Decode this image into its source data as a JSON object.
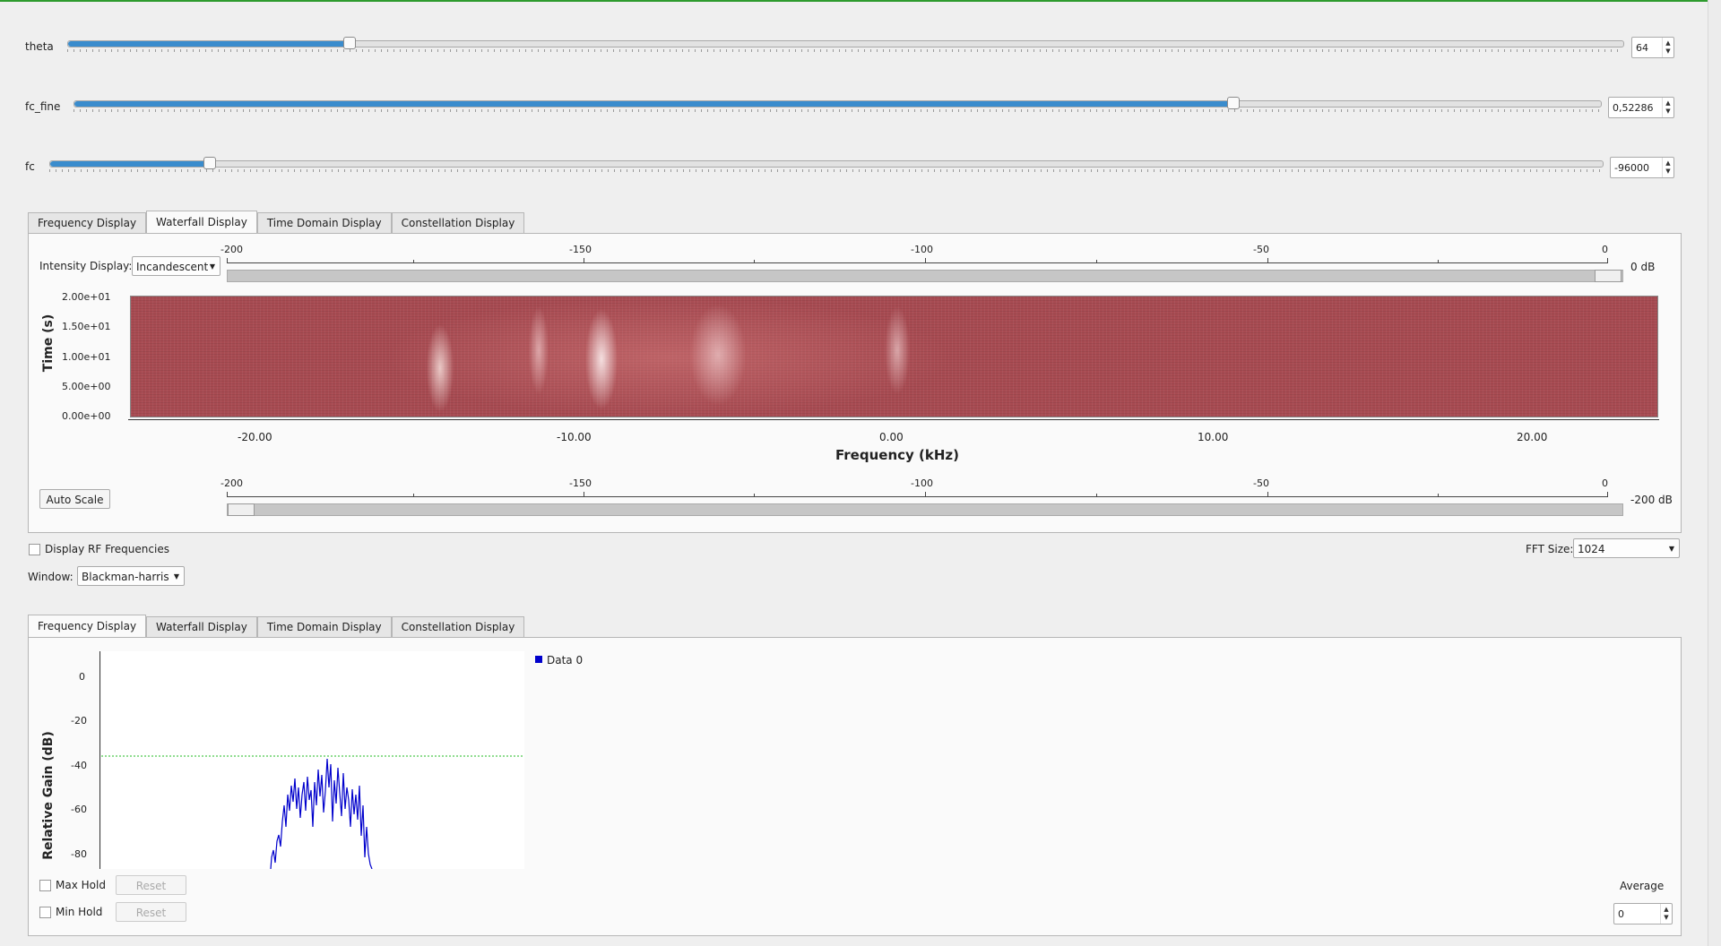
{
  "controls": {
    "theta": {
      "label": "theta",
      "value": "64",
      "fraction": 0.2
    },
    "fc_fine": {
      "label": "fc_fine",
      "value": "0,52286",
      "fraction": 0.76
    },
    "fc": {
      "label": "fc",
      "value": "-96000",
      "fraction": 0.1
    }
  },
  "tabs": [
    "Frequency Display",
    "Waterfall Display",
    "Time Domain Display",
    "Constellation Display"
  ],
  "waterfall": {
    "intensity_label": "Intensity Display:",
    "intensity_value": "Incandescent",
    "top_scale_ticks": [
      "-200",
      "-150",
      "-100",
      "-50",
      "0"
    ],
    "top_scale_unit": "0 dB",
    "bottom_scale_ticks": [
      "-200",
      "-150",
      "-100",
      "-50",
      "0"
    ],
    "bottom_scale_unit": "-200 dB",
    "auto_scale": "Auto Scale",
    "y_ticks": [
      "2.00e+01",
      "1.50e+01",
      "1.00e+01",
      "5.00e+00",
      "0.00e+00"
    ],
    "y_label": "Time (s)",
    "x_ticks": [
      "-20.00",
      "-10.00",
      "0.00",
      "10.00",
      "20.00"
    ],
    "x_label": "Frequency (kHz)"
  },
  "options": {
    "rf_label": "Display RF Frequencies",
    "fft_label": "FFT Size:",
    "fft_value": "1024",
    "window_label": "Window:",
    "window_value": "Blackman-harris"
  },
  "freq_display": {
    "legend": "Data 0",
    "y_label": "Relative Gain (dB)",
    "y_ticks": [
      "0",
      "-20",
      "-40",
      "-60",
      "-80"
    ],
    "max_hold": "Max Hold",
    "min_hold": "Min Hold",
    "reset": "Reset",
    "average_label": "Average",
    "average_value": "0"
  },
  "colors": {
    "trace": "#0000cc",
    "threshold": "#22bb22",
    "slider_fill": "#3a8ccd"
  }
}
